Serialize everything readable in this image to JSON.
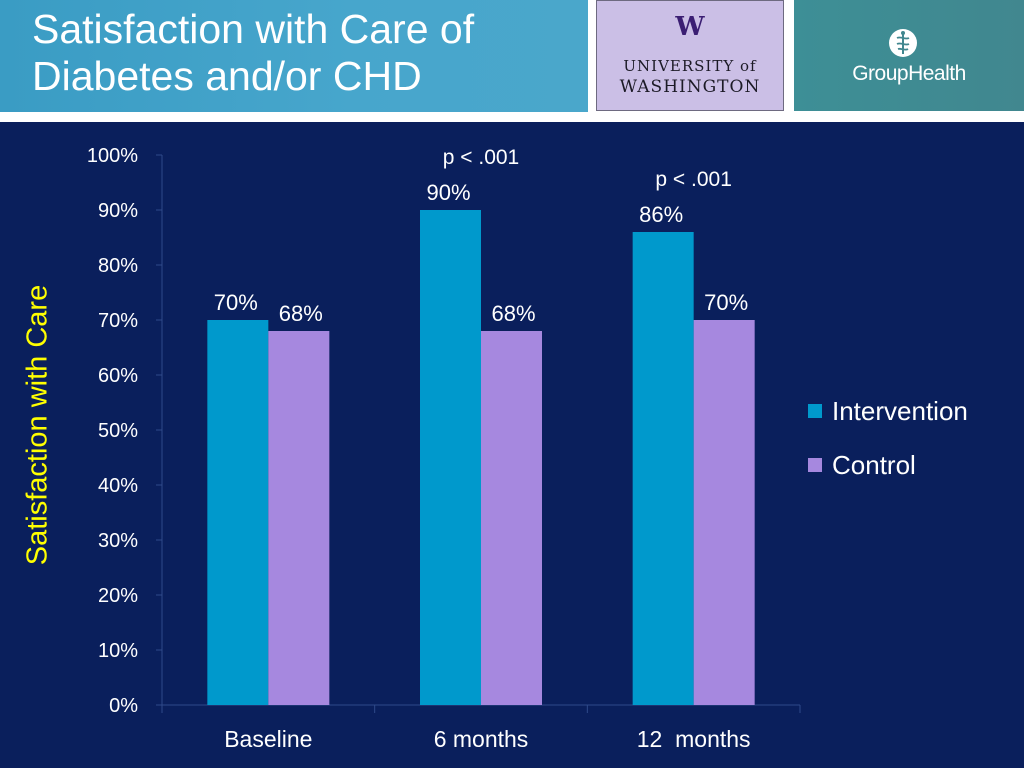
{
  "slide": {
    "title": "Satisfaction with Care of\nDiabetes and/or CHD"
  },
  "logos": {
    "uw": {
      "mark": "W",
      "line1": "UNIVERSITY of",
      "line2": "WASHINGTON",
      "color": "#3b1e73"
    },
    "grouphealth": {
      "name": "GroupHealth",
      "icon": "caduceus-icon"
    }
  },
  "colors": {
    "background": "#0a1f5c",
    "intervention": "#0099cc",
    "control": "#a688df",
    "ylabel": "#ffff00"
  },
  "chart_data": {
    "type": "bar",
    "categories": [
      "Baseline",
      "6 months",
      "12  months"
    ],
    "series": [
      {
        "name": "Intervention",
        "values": [
          70,
          90,
          86
        ],
        "labels": [
          "70%",
          "90%",
          "86%"
        ]
      },
      {
        "name": "Control",
        "values": [
          68,
          68,
          70
        ],
        "labels": [
          "68%",
          "68%",
          "70%"
        ]
      }
    ],
    "ylabel": "Satisfaction with Care",
    "ylim": [
      0,
      100
    ],
    "yticks": [
      "0%",
      "10%",
      "20%",
      "30%",
      "40%",
      "50%",
      "60%",
      "70%",
      "80%",
      "90%",
      "100%"
    ],
    "annotations": [
      {
        "category_index": 1,
        "text": "p < .001"
      },
      {
        "category_index": 2,
        "text": "p < .001"
      }
    ],
    "legend_position": "right",
    "grid": false
  }
}
